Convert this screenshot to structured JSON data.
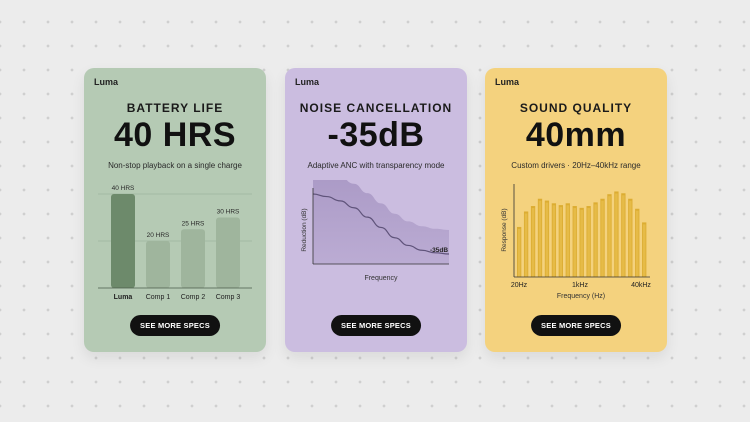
{
  "cards": [
    {
      "brand": "Luma",
      "title": "BATTERY LIFE",
      "value": "40 HRS",
      "subtitle": "Non-stop playback on a single charge",
      "button": "SEE MORE SPECS",
      "color": "#b5cab4"
    },
    {
      "brand": "Luma",
      "title": "NOISE CANCELLATION",
      "value": "-35dB",
      "subtitle": "Adaptive ANC with transparency mode",
      "button": "SEE MORE SPECS",
      "color": "#cbbde0"
    },
    {
      "brand": "Luma",
      "title": "SOUND QUALITY",
      "value": "40mm",
      "subtitle": "Custom drivers · 20Hz–40kHz range",
      "button": "SEE MORE SPECS",
      "color": "#f4d27e"
    }
  ],
  "chart_data": [
    {
      "type": "bar",
      "categories": [
        "Luma",
        "Comp 1",
        "Comp 2",
        "Comp 3"
      ],
      "values": [
        40,
        20,
        25,
        30
      ],
      "data_labels": [
        "40 HRS",
        "20 HRS",
        "25 HRS",
        "30 HRS"
      ],
      "ylim": [
        0,
        40
      ],
      "grid": true,
      "colors": [
        "#6d8a6b",
        "#9fb59d"
      ]
    },
    {
      "type": "area",
      "xlabel": "Frequency",
      "ylabel": "Reduction (dB)",
      "x": [
        0,
        0.1,
        0.2,
        0.3,
        0.4,
        0.5,
        0.6,
        0.7,
        0.8,
        0.9,
        1.0
      ],
      "y": [
        0,
        -1.5,
        -4,
        -8,
        -13.5,
        -19.5,
        -25.5,
        -30,
        -32.8,
        -34.3,
        -35
      ],
      "annotation": "-35dB",
      "colors": [
        "#5f537a",
        "#a897c4"
      ]
    },
    {
      "type": "bar",
      "xlabel": "Frequency (Hz)",
      "ylabel": "Response (dB)",
      "tick_labels": [
        "20Hz",
        "1kHz",
        "40kHz"
      ],
      "values": [
        0.55,
        0.72,
        0.78,
        0.86,
        0.84,
        0.81,
        0.79,
        0.81,
        0.78,
        0.76,
        0.78,
        0.82,
        0.86,
        0.91,
        0.94,
        0.92,
        0.86,
        0.75,
        0.6
      ],
      "colors": [
        "#d9a92a",
        "#efc75a"
      ]
    }
  ]
}
